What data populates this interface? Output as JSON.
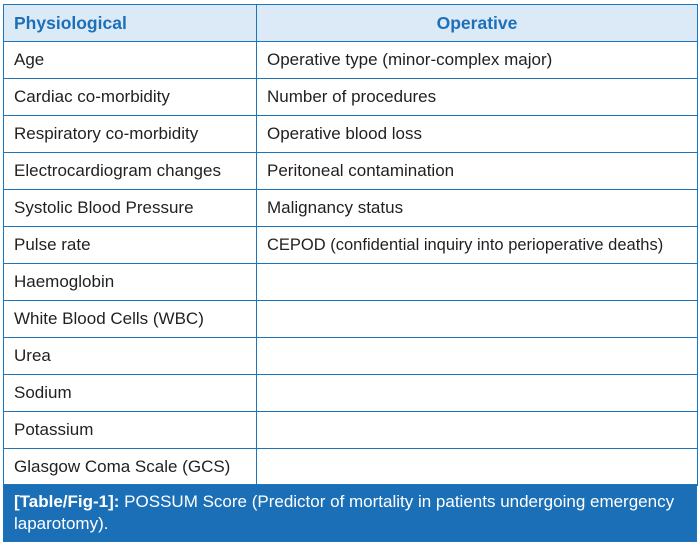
{
  "table": {
    "headers": [
      "Physiological",
      "Operative"
    ],
    "rows": [
      [
        "Age",
        "Operative type (minor-complex major)"
      ],
      [
        "Cardiac co-morbidity",
        "Number of procedures"
      ],
      [
        "Respiratory co-morbidity",
        "Operative blood loss"
      ],
      [
        "Electrocardiogram changes",
        "Peritoneal contamination"
      ],
      [
        "Systolic Blood Pressure",
        "Malignancy status"
      ],
      [
        "Pulse rate",
        "CEPOD (confidential inquiry into perioperative deaths)"
      ],
      [
        "Haemoglobin",
        ""
      ],
      [
        "White Blood Cells (WBC)",
        ""
      ],
      [
        "Urea",
        ""
      ],
      [
        "Sodium",
        ""
      ],
      [
        "Potassium",
        ""
      ],
      [
        "Glasgow Coma Scale (GCS)",
        ""
      ]
    ]
  },
  "caption": {
    "label": "[Table/Fig-1]:",
    "text": " POSSUM Score (Predictor of mortality in patients undergoing emergency laparotomy)."
  },
  "colors": {
    "border": "#1d75bc",
    "header_bg": "#dceaf7",
    "header_text": "#1d70b8",
    "caption_bg": "#1b6fb6",
    "caption_text": "#ffffff"
  }
}
